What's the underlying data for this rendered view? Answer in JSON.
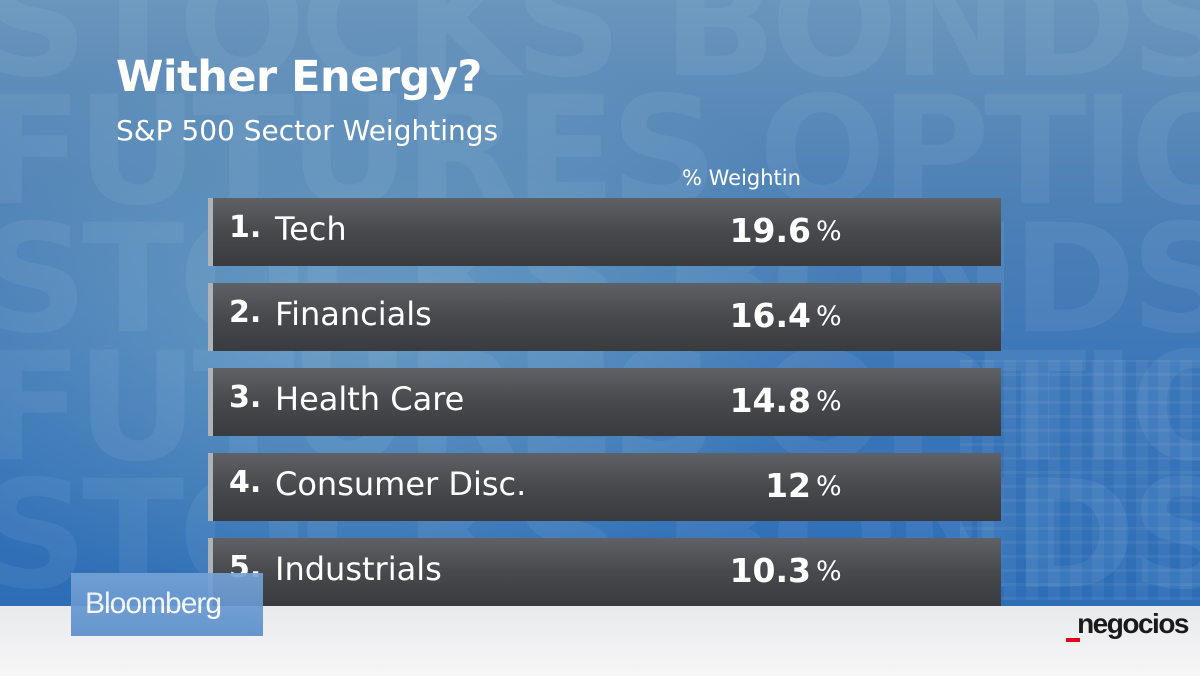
{
  "slide": {
    "title": "Wither Energy?",
    "subtitle": "S&P 500 Sector Weightings",
    "column_header": "% Weightin",
    "rows": [
      {
        "rank": "1.",
        "sector": "Tech",
        "value": "19.6",
        "unit": "%"
      },
      {
        "rank": "2.",
        "sector": "Financials",
        "value": "16.4",
        "unit": "%"
      },
      {
        "rank": "3.",
        "sector": "Health Care",
        "value": "14.8",
        "unit": "%"
      },
      {
        "rank": "4.",
        "sector": "Consumer Disc.",
        "value": "12",
        "unit": "%"
      },
      {
        "rank": "5.",
        "sector": "Industrials",
        "value": "10.3",
        "unit": "%"
      }
    ]
  },
  "watermark_lines": [
    "STOCKS BONDS",
    "FUTURES OPTIONS",
    "STOCKS BONDS",
    "FUTURES OPTIONS",
    "STOCKS BONDS"
  ],
  "branding": {
    "broadcaster": "Bloomberg",
    "publisher": "negocios",
    "colors": {
      "bloomberg_bg": "#5a8ecb",
      "publisher_accent": "#e2001a"
    }
  }
}
